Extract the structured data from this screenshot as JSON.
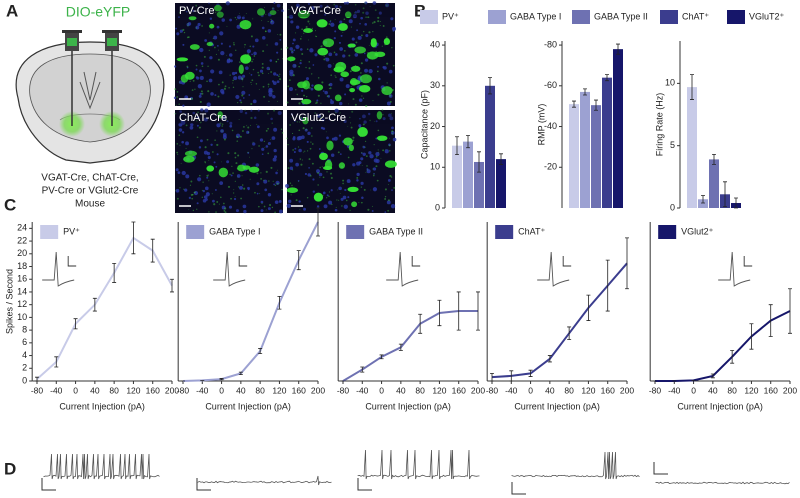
{
  "panel_labels": [
    "A",
    "B",
    "C",
    "D"
  ],
  "panel_a": {
    "vector": "DIO-eYFP",
    "caption": [
      "VGAT-Cre, ChAT-Cre,",
      "PV-Cre or VGlut2-Cre",
      "Mouse"
    ],
    "images": [
      "PV-Cre",
      "VGAT-Cre",
      "ChAT-Cre",
      "VGlut2-Cre"
    ]
  },
  "b_legend": [
    {
      "name": "PV⁺",
      "color": "#c8cbe8"
    },
    {
      "name": "GABA Type I",
      "color": "#9ca1d2"
    },
    {
      "name": "GABA Type II",
      "color": "#6e71b2"
    },
    {
      "name": "ChAT⁺",
      "color": "#3b3d8e"
    },
    {
      "name": "VGluT2⁺",
      "color": "#16166a"
    }
  ],
  "chart_data": [
    {
      "type": "bar",
      "ylabel": "Capacitance (pF)",
      "values": [
        15.3,
        16.3,
        11.3,
        30,
        12
      ],
      "errors": [
        2.2,
        1.5,
        2.5,
        2,
        1.3
      ],
      "ylim": [
        0,
        41
      ],
      "yticks": [
        0,
        10,
        20,
        30,
        40
      ]
    },
    {
      "type": "bar",
      "ylabel": "RMP (mV)",
      "values": [
        -51,
        -57,
        -50.5,
        -64,
        -78
      ],
      "errors": [
        1.5,
        1.5,
        2.5,
        1.5,
        2.5
      ],
      "ylim": [
        0,
        -82
      ],
      "yticks": [
        -20,
        -40,
        -60,
        -80
      ]
    },
    {
      "type": "bar",
      "ylabel": "Firing Rate (Hz)",
      "values": [
        9.7,
        0.7,
        3.9,
        1.1,
        0.4
      ],
      "errors": [
        1,
        0.3,
        0.4,
        1,
        0.4
      ],
      "ylim": [
        0,
        13.4
      ],
      "yticks": [
        0,
        5,
        10
      ]
    },
    {
      "type": "line",
      "ylabel": "Spikes / Second",
      "xlabel": "Current Injection (pA)",
      "x": [
        -80,
        -40,
        0,
        40,
        80,
        120,
        160,
        200
      ],
      "series": [
        {
          "name": "PV⁺",
          "color": "#c8cbe8",
          "values": [
            0.3,
            3,
            9,
            12,
            17,
            22.5,
            20.5,
            15
          ],
          "errors": [
            0.3,
            0.8,
            0.8,
            1,
            1.5,
            2.5,
            1.8,
            1
          ]
        }
      ],
      "xlim": [
        -90,
        200
      ],
      "xticks": [
        -80,
        -40,
        0,
        40,
        80,
        120,
        160,
        200
      ],
      "ylim": [
        0,
        25
      ],
      "yticks": [
        0,
        2,
        4,
        6,
        8,
        10,
        12,
        14,
        16,
        18,
        20,
        22,
        24
      ]
    },
    {
      "type": "line",
      "xlabel": "Current Injection (pA)",
      "x": [
        -80,
        -40,
        0,
        40,
        80,
        120,
        160,
        200
      ],
      "series": [
        {
          "name": "GABA Type I",
          "color": "#9ca1d2",
          "values": [
            0,
            0.1,
            0.3,
            1.2,
            4.7,
            12.3,
            19,
            25
          ],
          "errors": [
            0,
            0,
            0.1,
            0.2,
            0.4,
            1,
            1.5,
            2.2
          ]
        }
      ],
      "xlim": [
        -90,
        200
      ],
      "xticks": [
        -80,
        -40,
        0,
        40,
        80,
        120,
        160,
        200
      ],
      "ylim": [
        0,
        25
      ]
    },
    {
      "type": "line",
      "xlabel": "Current Injection (pA)",
      "x": [
        -80,
        -40,
        0,
        40,
        80,
        120,
        160,
        200
      ],
      "series": [
        {
          "name": "GABA Type II",
          "color": "#6e71b2",
          "values": [
            0,
            1.8,
            3.8,
            5.3,
            9,
            10.7,
            11,
            11
          ],
          "errors": [
            0,
            0.4,
            0.3,
            0.5,
            1.5,
            2,
            3,
            3
          ]
        }
      ],
      "xlim": [
        -90,
        200
      ],
      "xticks": [
        -80,
        -40,
        0,
        40,
        80,
        120,
        160,
        200
      ],
      "ylim": [
        0,
        25
      ]
    },
    {
      "type": "line",
      "xlabel": "Current Injection (pA)",
      "x": [
        -80,
        -40,
        0,
        40,
        80,
        120,
        160,
        200
      ],
      "series": [
        {
          "name": "ChAT⁺",
          "color": "#3b3d8e",
          "values": [
            0.6,
            0.8,
            1.2,
            3.5,
            7.5,
            11.5,
            15,
            18.5
          ],
          "errors": [
            0.6,
            0.8,
            0.5,
            0.5,
            1,
            2,
            4,
            4
          ]
        }
      ],
      "xlim": [
        -90,
        200
      ],
      "xticks": [
        -80,
        -40,
        0,
        40,
        80,
        120,
        160,
        200
      ],
      "ylim": [
        0,
        25
      ]
    },
    {
      "type": "line",
      "xlabel": "Current Injection (pA)",
      "x": [
        -80,
        -40,
        0,
        40,
        80,
        120,
        160,
        200
      ],
      "series": [
        {
          "name": "VGlut2⁺",
          "color": "#16166a",
          "values": [
            0,
            0,
            0.1,
            0.8,
            3.8,
            7,
            9.5,
            11
          ],
          "errors": [
            0,
            0,
            0,
            0.3,
            1,
            2,
            2.5,
            3.5
          ]
        }
      ],
      "xlim": [
        -90,
        200
      ],
      "xticks": [
        -80,
        -40,
        0,
        40,
        80,
        120,
        160,
        200
      ],
      "ylim": [
        0,
        25
      ]
    }
  ]
}
